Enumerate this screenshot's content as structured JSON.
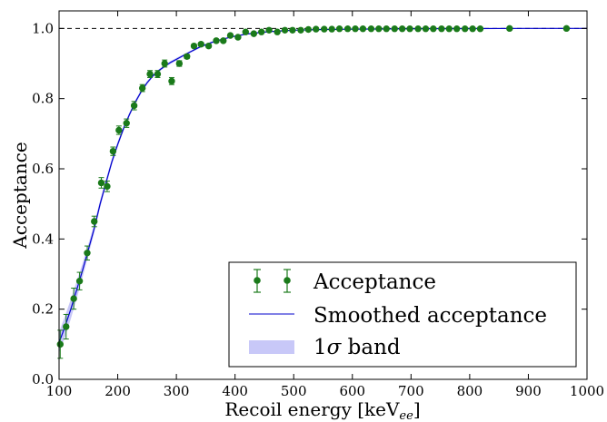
{
  "chart_data": {
    "type": "scatter",
    "xlabel": "Recoil energy [keV",
    "xlabel_subscript": "ee",
    "xlabel_suffix": "]",
    "ylabel": "Acceptance",
    "xlim": [
      100,
      1000
    ],
    "ylim": [
      0.0,
      1.05
    ],
    "xticks": [
      100,
      200,
      300,
      400,
      500,
      600,
      700,
      800,
      900,
      1000
    ],
    "xtick_labels": [
      "100",
      "200",
      "300",
      "400",
      "500",
      "600",
      "700",
      "800",
      "900",
      "1000"
    ],
    "yticks": [
      0.0,
      0.2,
      0.4,
      0.6,
      0.8,
      1.0
    ],
    "ytick_labels": [
      "0.0",
      "0.2",
      "0.4",
      "0.6",
      "0.8",
      "1.0"
    ],
    "reference_line": {
      "y": 1.0,
      "style": "dashed"
    },
    "grid": false,
    "legend_position": "bottom-right",
    "legend": {
      "acceptance": "Acceptance",
      "smoothed": "Smoothed acceptance",
      "band_prefix": "1",
      "band_symbol": "σ",
      "band_suffix": " band"
    },
    "colors": {
      "points": "#1a7a1a",
      "line": "#0000cc",
      "band": "#c8c8f8"
    },
    "series": [
      {
        "name": "Acceptance",
        "kind": "points-with-errorbars",
        "x": [
          102,
          112,
          125,
          135,
          148,
          160,
          172,
          182,
          192,
          202,
          215,
          228,
          242,
          255,
          268,
          280,
          292,
          305,
          318,
          330,
          342,
          355,
          368,
          380,
          392,
          405,
          418,
          432,
          445,
          458,
          472,
          485,
          498,
          512,
          525,
          538,
          552,
          565,
          578,
          592,
          605,
          618,
          632,
          645,
          658,
          672,
          685,
          698,
          712,
          725,
          738,
          752,
          765,
          778,
          792,
          805,
          818,
          868,
          965
        ],
        "y": [
          0.1,
          0.15,
          0.23,
          0.28,
          0.36,
          0.45,
          0.56,
          0.55,
          0.65,
          0.71,
          0.73,
          0.78,
          0.83,
          0.87,
          0.87,
          0.9,
          0.85,
          0.9,
          0.92,
          0.95,
          0.955,
          0.95,
          0.965,
          0.965,
          0.98,
          0.975,
          0.99,
          0.985,
          0.99,
          0.995,
          0.99,
          0.995,
          0.995,
          0.995,
          0.997,
          0.998,
          0.998,
          0.998,
          0.999,
          0.999,
          0.999,
          0.999,
          0.999,
          0.999,
          0.999,
          0.999,
          0.999,
          0.999,
          0.999,
          0.999,
          0.999,
          0.999,
          0.999,
          0.999,
          0.999,
          0.999,
          0.999,
          1.0,
          1.0
        ],
        "yerr": [
          0.04,
          0.035,
          0.03,
          0.025,
          0.02,
          0.015,
          0.015,
          0.015,
          0.012,
          0.012,
          0.012,
          0.012,
          0.01,
          0.01,
          0.01,
          0.01,
          0.01,
          0.008,
          0.006,
          0.005,
          0.005,
          0.005,
          0.005,
          0.004,
          0.004,
          0.004,
          0.003,
          0.003,
          0.003,
          0.002,
          0.002,
          0.002,
          0.002,
          0.002,
          0.002,
          0.002,
          0.002,
          0.002,
          0.002,
          0.002,
          0.002,
          0.002,
          0.002,
          0.002,
          0.002,
          0.002,
          0.002,
          0.002,
          0.002,
          0.002,
          0.002,
          0.002,
          0.002,
          0.002,
          0.002,
          0.002,
          0.002,
          0.002,
          0.002
        ]
      },
      {
        "name": "Smoothed acceptance",
        "kind": "line",
        "x": [
          100,
          110,
          120,
          130,
          140,
          150,
          160,
          170,
          180,
          190,
          200,
          210,
          220,
          230,
          240,
          250,
          260,
          270,
          280,
          290,
          300,
          320,
          340,
          360,
          380,
          400,
          420,
          440,
          460,
          480,
          500,
          550,
          600,
          700,
          800,
          900,
          1000
        ],
        "y": [
          0.105,
          0.15,
          0.2,
          0.255,
          0.31,
          0.37,
          0.43,
          0.5,
          0.56,
          0.62,
          0.67,
          0.715,
          0.755,
          0.79,
          0.82,
          0.845,
          0.865,
          0.88,
          0.892,
          0.903,
          0.912,
          0.93,
          0.947,
          0.96,
          0.97,
          0.978,
          0.984,
          0.988,
          0.991,
          0.993,
          0.995,
          0.997,
          0.998,
          0.999,
          0.9995,
          1.0,
          1.0
        ],
        "band": [
          0.03,
          0.03,
          0.028,
          0.025,
          0.02,
          0.016,
          0.013,
          0.011,
          0.01,
          0.009,
          0.008,
          0.007,
          0.006,
          0.006,
          0.005,
          0.005,
          0.004,
          0.004,
          0.004,
          0.004,
          0.004,
          0.003,
          0.003,
          0.003,
          0.002,
          0.002,
          0.002,
          0.002,
          0.002,
          0.002,
          0.001,
          0.001,
          0.001,
          0.001,
          0.001,
          0.001,
          0.001
        ]
      }
    ]
  }
}
